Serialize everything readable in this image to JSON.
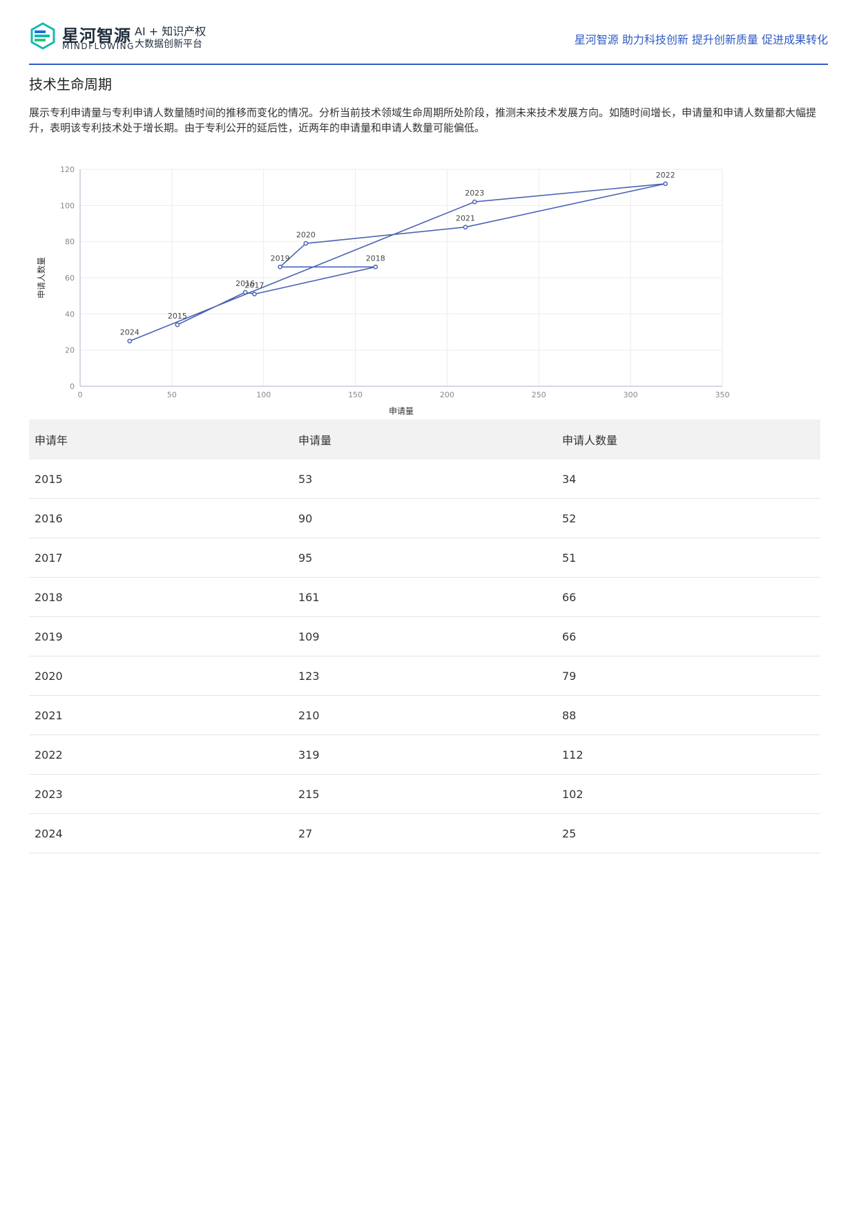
{
  "header": {
    "brand_cn": "星河智源",
    "brand_en": "MINDFLOWING",
    "tagline_1": "AI + 知识产权",
    "tagline_2": "大数据创新平台",
    "slogan": "星河智源 助力科技创新 提升创新质量 促进成果转化"
  },
  "section": {
    "title": "技术生命周期",
    "description": "展示专利申请量与专利申请人数量随时间的推移而变化的情况。分析当前技术领域生命周期所处阶段，推测未来技术发展方向。如随时间增长，申请量和申请人数量都大幅提升，表明该专利技术处于增长期。由于专利公开的延后性，近两年的申请量和申请人数量可能偏低。"
  },
  "chart_data": {
    "type": "line",
    "xlabel": "申请量",
    "ylabel": "申请人数量",
    "xlim": [
      0,
      350
    ],
    "ylim": [
      0,
      120
    ],
    "xticks": [
      0,
      50,
      100,
      150,
      200,
      250,
      300,
      350
    ],
    "yticks": [
      0,
      20,
      40,
      60,
      80,
      100,
      120
    ],
    "grid": true,
    "series": [
      {
        "points": [
          {
            "label": "2015",
            "x": 53,
            "y": 34
          },
          {
            "label": "2016",
            "x": 90,
            "y": 52
          },
          {
            "label": "2017",
            "x": 95,
            "y": 51
          },
          {
            "label": "2018",
            "x": 161,
            "y": 66
          },
          {
            "label": "2019",
            "x": 109,
            "y": 66
          },
          {
            "label": "2020",
            "x": 123,
            "y": 79
          },
          {
            "label": "2021",
            "x": 210,
            "y": 88
          },
          {
            "label": "2022",
            "x": 319,
            "y": 112
          },
          {
            "label": "2023",
            "x": 215,
            "y": 102
          },
          {
            "label": "2024",
            "x": 27,
            "y": 25
          }
        ],
        "color": "#4a63b4"
      }
    ]
  },
  "table": {
    "headers": [
      "申请年",
      "申请量",
      "申请人数量"
    ],
    "rows": [
      [
        "2015",
        "53",
        "34"
      ],
      [
        "2016",
        "90",
        "52"
      ],
      [
        "2017",
        "95",
        "51"
      ],
      [
        "2018",
        "161",
        "66"
      ],
      [
        "2019",
        "109",
        "66"
      ],
      [
        "2020",
        "123",
        "79"
      ],
      [
        "2021",
        "210",
        "88"
      ],
      [
        "2022",
        "319",
        "112"
      ],
      [
        "2023",
        "215",
        "102"
      ],
      [
        "2024",
        "27",
        "25"
      ]
    ]
  }
}
